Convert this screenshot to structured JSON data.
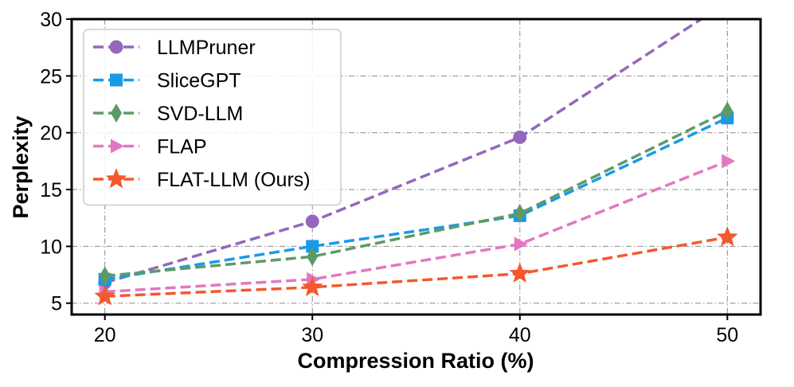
{
  "chart_data": {
    "type": "line",
    "title": "",
    "xlabel": "Compression Ratio (%)",
    "ylabel": "Perplexity",
    "x": [
      20,
      30,
      40,
      50
    ],
    "x_ticks": [
      "20",
      "30",
      "40",
      "50"
    ],
    "y_ticks": [
      "5",
      "10",
      "15",
      "20",
      "25",
      "30"
    ],
    "xlim": [
      18.4,
      51.6
    ],
    "ylim": [
      4,
      30
    ],
    "grid": true,
    "legend_position": "upper-left",
    "series": [
      {
        "name": "LLMPruner",
        "values": [
          6.8,
          12.2,
          19.6,
          31.5
        ],
        "color": "#9467bd",
        "marker": "circle"
      },
      {
        "name": "SliceGPT",
        "values": [
          7.1,
          10.0,
          12.7,
          21.3
        ],
        "color": "#1a9ae6",
        "marker": "square"
      },
      {
        "name": "SVD-LLM",
        "values": [
          7.4,
          9.1,
          12.9,
          21.9
        ],
        "color": "#5e9a66",
        "marker": "diamond"
      },
      {
        "name": "FLAP",
        "values": [
          6.0,
          7.1,
          10.2,
          17.5
        ],
        "color": "#e377c2",
        "marker": "triangle-right"
      },
      {
        "name": "FLAT-LLM (Ours)",
        "values": [
          5.6,
          6.4,
          7.6,
          10.8
        ],
        "color": "#f4582d",
        "marker": "star"
      }
    ]
  }
}
